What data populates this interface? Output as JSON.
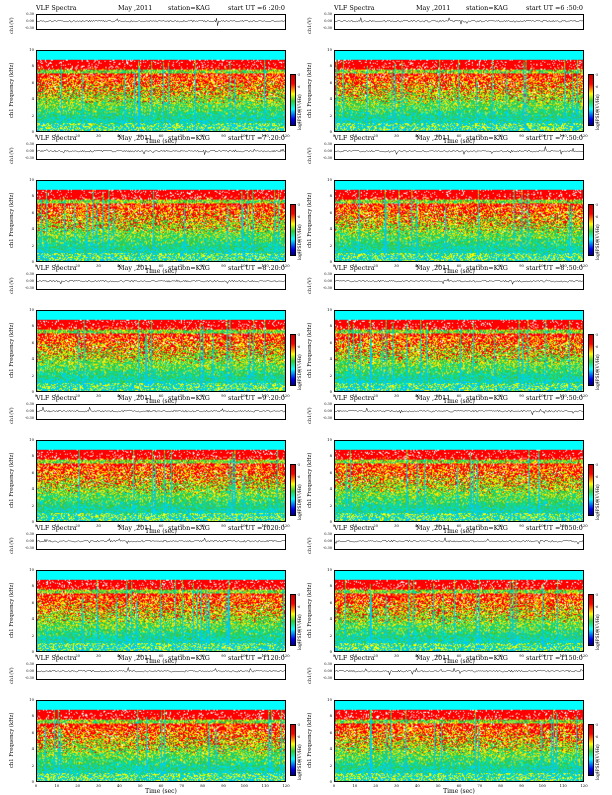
{
  "chart_data": [
    {
      "type": "heatmap",
      "header": {
        "title": "VLF Spectra",
        "date": "May  ,2011",
        "station": "station=KAG",
        "start": "start  UT =6 :20:0"
      },
      "ts_label": "ch1(V)",
      "ts_ticks": [
        "0.30",
        "0.00",
        "-0.30"
      ],
      "ylabel": "ch1\nFrequency (kHz)",
      "yticks": [
        "0",
        "2",
        "4",
        "6",
        "8",
        "10"
      ],
      "xlabel": "Time (sec)",
      "xticks": [
        "0",
        "10",
        "20",
        "30",
        "40",
        "50",
        "60",
        "70",
        "80",
        "90",
        "100",
        "110",
        "120"
      ],
      "xlim": [
        0,
        120
      ],
      "ylim": [
        0,
        10
      ],
      "colorbar_label": "log(PSD)(V²/Hz)",
      "colorbar_ticks": [
        "-5",
        "-6",
        "-7",
        "-8",
        "-9"
      ]
    },
    {
      "type": "heatmap",
      "header": {
        "title": "VLF Spectra",
        "date": "May  ,2011",
        "station": "station=KAG",
        "start": "start  UT =6 :50:0"
      },
      "ts_label": "ch1(V)",
      "ts_ticks": [
        "0.30",
        "0.00",
        "-0.30"
      ],
      "ylabel": "ch1\nFrequency (kHz)",
      "yticks": [
        "0",
        "2",
        "4",
        "6",
        "8",
        "10"
      ],
      "xlabel": "Time (sec)",
      "xticks": [
        "0",
        "10",
        "20",
        "30",
        "40",
        "50",
        "60",
        "70",
        "80",
        "90",
        "100",
        "110",
        "120"
      ],
      "xlim": [
        0,
        120
      ],
      "ylim": [
        0,
        10
      ],
      "colorbar_label": "log(PSD)(V²/Hz)",
      "colorbar_ticks": [
        "-5",
        "-6",
        "-7",
        "-8",
        "-9"
      ]
    },
    {
      "type": "heatmap",
      "header": {
        "title": "VLF Spectra",
        "date": "May  ,2011",
        "station": "station=KAG",
        "start": "start  UT =7 :20:0"
      },
      "ts_label": "ch1(V)",
      "ts_ticks": [
        "0.30",
        "0.00",
        "-0.30"
      ],
      "ylabel": "ch1\nFrequency (kHz)",
      "yticks": [
        "0",
        "2",
        "4",
        "6",
        "8",
        "10"
      ],
      "xlabel": "Time (sec)",
      "xticks": [
        "0",
        "10",
        "20",
        "30",
        "40",
        "50",
        "60",
        "70",
        "80",
        "90",
        "100",
        "110",
        "120"
      ],
      "xlim": [
        0,
        120
      ],
      "ylim": [
        0,
        10
      ],
      "colorbar_label": "log(PSD)(V²/Hz)",
      "colorbar_ticks": [
        "-5",
        "-6",
        "-7",
        "-8",
        "-9"
      ]
    },
    {
      "type": "heatmap",
      "header": {
        "title": "VLF Spectra",
        "date": "May  ,2011",
        "station": "station=KAG",
        "start": "start  UT =7 :50:0"
      },
      "ts_label": "ch1(V)",
      "ts_ticks": [
        "0.30",
        "0.00",
        "-0.30"
      ],
      "ylabel": "ch1\nFrequency (kHz)",
      "yticks": [
        "0",
        "2",
        "4",
        "6",
        "8",
        "10"
      ],
      "xlabel": "Time (sec)",
      "xticks": [
        "0",
        "10",
        "20",
        "30",
        "40",
        "50",
        "60",
        "70",
        "80",
        "90",
        "100",
        "110",
        "120"
      ],
      "xlim": [
        0,
        120
      ],
      "ylim": [
        0,
        10
      ],
      "colorbar_label": "log(PSD)(V²/Hz)",
      "colorbar_ticks": [
        "-5",
        "-6",
        "-7",
        "-8",
        "-9"
      ]
    },
    {
      "type": "heatmap",
      "header": {
        "title": "VLF Spectra",
        "date": "May  ,2011",
        "station": "station=KAG",
        "start": "start  UT =8 :20:0"
      },
      "ts_label": "ch1(V)",
      "ts_ticks": [
        "0.30",
        "0.00",
        "-0.30"
      ],
      "ylabel": "ch1\nFrequency (kHz)",
      "yticks": [
        "0",
        "2",
        "4",
        "6",
        "8",
        "10"
      ],
      "xlabel": "Time (sec)",
      "xticks": [
        "0",
        "10",
        "20",
        "30",
        "40",
        "50",
        "60",
        "70",
        "80",
        "90",
        "100",
        "110",
        "120"
      ],
      "xlim": [
        0,
        120
      ],
      "ylim": [
        0,
        10
      ],
      "colorbar_label": "log(PSD)(V²/Hz)",
      "colorbar_ticks": [
        "-5",
        "-6",
        "-7",
        "-8",
        "-9"
      ]
    },
    {
      "type": "heatmap",
      "header": {
        "title": "VLF Spectra",
        "date": "May  ,2011",
        "station": "station=KAG",
        "start": "start  UT =8 :50:0"
      },
      "ts_label": "ch1(V)",
      "ts_ticks": [
        "0.30",
        "0.00",
        "-0.30"
      ],
      "ylabel": "ch1\nFrequency (kHz)",
      "yticks": [
        "0",
        "2",
        "4",
        "6",
        "8",
        "10"
      ],
      "xlabel": "Time (sec)",
      "xticks": [
        "0",
        "10",
        "20",
        "30",
        "40",
        "50",
        "60",
        "70",
        "80",
        "90",
        "100",
        "110",
        "120"
      ],
      "xlim": [
        0,
        120
      ],
      "ylim": [
        0,
        10
      ],
      "colorbar_label": "log(PSD)(V²/Hz)",
      "colorbar_ticks": [
        "-5",
        "-6",
        "-7",
        "-8",
        "-9"
      ]
    },
    {
      "type": "heatmap",
      "header": {
        "title": "VLF Spectra",
        "date": "May  ,2011",
        "station": "station=KAG",
        "start": "start  UT =9 :20:0"
      },
      "ts_label": "ch1(V)",
      "ts_ticks": [
        "0.30",
        "0.00",
        "-0.30"
      ],
      "ylabel": "ch1\nFrequency (kHz)",
      "yticks": [
        "0",
        "2",
        "4",
        "6",
        "8",
        "10"
      ],
      "xlabel": "Time (sec)",
      "xticks": [
        "0",
        "10",
        "20",
        "30",
        "40",
        "50",
        "60",
        "70",
        "80",
        "90",
        "100",
        "110",
        "120"
      ],
      "xlim": [
        0,
        120
      ],
      "ylim": [
        0,
        10
      ],
      "colorbar_label": "log(PSD)(V²/Hz)",
      "colorbar_ticks": [
        "-5",
        "-6",
        "-7",
        "-8",
        "-9"
      ]
    },
    {
      "type": "heatmap",
      "header": {
        "title": "VLF Spectra",
        "date": "May  ,2011",
        "station": "station=KAG",
        "start": "start  UT =9 :50:0"
      },
      "ts_label": "ch1(V)",
      "ts_ticks": [
        "0.30",
        "0.00",
        "-0.30"
      ],
      "ylabel": "ch1\nFrequency (kHz)",
      "yticks": [
        "0",
        "2",
        "4",
        "6",
        "8",
        "10"
      ],
      "xlabel": "Time (sec)",
      "xticks": [
        "0",
        "10",
        "20",
        "30",
        "40",
        "50",
        "60",
        "70",
        "80",
        "90",
        "100",
        "110",
        "120"
      ],
      "xlim": [
        0,
        120
      ],
      "ylim": [
        0,
        10
      ],
      "colorbar_label": "log(PSD)(V²/Hz)",
      "colorbar_ticks": [
        "-5",
        "-6",
        "-7",
        "-8",
        "-9"
      ]
    },
    {
      "type": "heatmap",
      "header": {
        "title": "VLF Spectra",
        "date": "May  ,2011",
        "station": "station=KAG",
        "start": "start  UT =1020:0"
      },
      "ts_label": "ch1(V)",
      "ts_ticks": [
        "0.30",
        "0.00",
        "-0.30"
      ],
      "ylabel": "ch1\nFrequency (kHz)",
      "yticks": [
        "0",
        "2",
        "4",
        "6",
        "8",
        "10"
      ],
      "xlabel": "Time (sec)",
      "xticks": [
        "0",
        "10",
        "20",
        "30",
        "40",
        "50",
        "60",
        "70",
        "80",
        "90",
        "100",
        "110",
        "120"
      ],
      "xlim": [
        0,
        120
      ],
      "ylim": [
        0,
        10
      ],
      "colorbar_label": "log(PSD)(V²/Hz)",
      "colorbar_ticks": [
        "-5",
        "-6",
        "-7",
        "-8",
        "-9"
      ]
    },
    {
      "type": "heatmap",
      "header": {
        "title": "VLF Spectra",
        "date": "May  ,2011",
        "station": "station=KAG",
        "start": "start  UT =1050:0"
      },
      "ts_label": "ch1(V)",
      "ts_ticks": [
        "0.30",
        "0.00",
        "-0.30"
      ],
      "ylabel": "ch1\nFrequency (kHz)",
      "yticks": [
        "0",
        "2",
        "4",
        "6",
        "8",
        "10"
      ],
      "xlabel": "Time (sec)",
      "xticks": [
        "0",
        "10",
        "20",
        "30",
        "40",
        "50",
        "60",
        "70",
        "80",
        "90",
        "100",
        "110",
        "120"
      ],
      "xlim": [
        0,
        120
      ],
      "ylim": [
        0,
        10
      ],
      "colorbar_label": "log(PSD)(V²/Hz)",
      "colorbar_ticks": [
        "-5",
        "-6",
        "-7",
        "-8",
        "-9"
      ]
    },
    {
      "type": "heatmap",
      "header": {
        "title": "VLF Spectra",
        "date": "May  ,2011",
        "station": "station=KAG",
        "start": "start  UT =1120:0"
      },
      "ts_label": "ch1(V)",
      "ts_ticks": [
        "0.30",
        "0.00",
        "-0.30"
      ],
      "ylabel": "ch1\nFrequency (kHz)",
      "yticks": [
        "0",
        "2",
        "4",
        "6",
        "8",
        "10"
      ],
      "xlabel": "Time (sec)",
      "xticks": [
        "0",
        "10",
        "20",
        "30",
        "40",
        "50",
        "60",
        "70",
        "80",
        "90",
        "100",
        "110",
        "120"
      ],
      "xlim": [
        0,
        120
      ],
      "ylim": [
        0,
        10
      ],
      "colorbar_label": "log(PSD)(V²/Hz)",
      "colorbar_ticks": [
        "-5",
        "-6",
        "-7",
        "-8",
        "-9"
      ]
    },
    {
      "type": "heatmap",
      "header": {
        "title": "VLF Spectra",
        "date": "May  ,2011",
        "station": "station=KAG",
        "start": "start  UT =1150:0"
      },
      "ts_label": "ch1(V)",
      "ts_ticks": [
        "0.30",
        "0.00",
        "-0.30"
      ],
      "ylabel": "ch1\nFrequency (kHz)",
      "yticks": [
        "0",
        "2",
        "4",
        "6",
        "8",
        "10"
      ],
      "xlabel": "Time (sec)",
      "xticks": [
        "0",
        "10",
        "20",
        "30",
        "40",
        "50",
        "60",
        "70",
        "80",
        "90",
        "100",
        "110",
        "120"
      ],
      "xlim": [
        0,
        120
      ],
      "ylim": [
        0,
        10
      ],
      "colorbar_label": "log(PSD)(V²/Hz)",
      "colorbar_ticks": [
        "-5",
        "-6",
        "-7",
        "-8",
        "-9"
      ]
    }
  ],
  "colors": {
    "background": "#ffffff",
    "noise_floor": "#00ffff",
    "low": "#33cc33",
    "mid": "#ffff00",
    "high": "#ff0000"
  }
}
